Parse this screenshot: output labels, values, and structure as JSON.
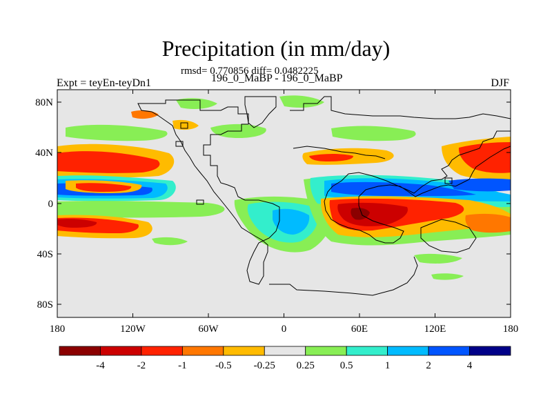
{
  "header": {
    "title": "Precipitation (in mm/day)",
    "stats": "rmsd= 0.770856 diff= 0.0482225",
    "experiment": "Expt = teyEn-teyDn1",
    "comparison": "196_0_MaBP - 196_0_MaBP",
    "season": "DJF"
  },
  "axes": {
    "lat_ticks": [
      "80N",
      "40N",
      "0",
      "40S",
      "80S"
    ],
    "lon_ticks": [
      "180",
      "120W",
      "60W",
      "0",
      "60E",
      "120E",
      "180"
    ]
  },
  "colorbar": {
    "colors": [
      "#8b0000",
      "#cc0000",
      "#ff2200",
      "#ff7700",
      "#ffbb00",
      "#e6e6e6",
      "#88ee55",
      "#33eecc",
      "#00bbff",
      "#0055ff",
      "#000088"
    ],
    "labels": [
      "-4",
      "-2",
      "-1",
      "-0.5",
      "-0.25",
      "0.25",
      "0.5",
      "1",
      "2",
      "4"
    ]
  },
  "map": {
    "background_color": "#e6e6e6",
    "coastline_color": "#000000"
  }
}
